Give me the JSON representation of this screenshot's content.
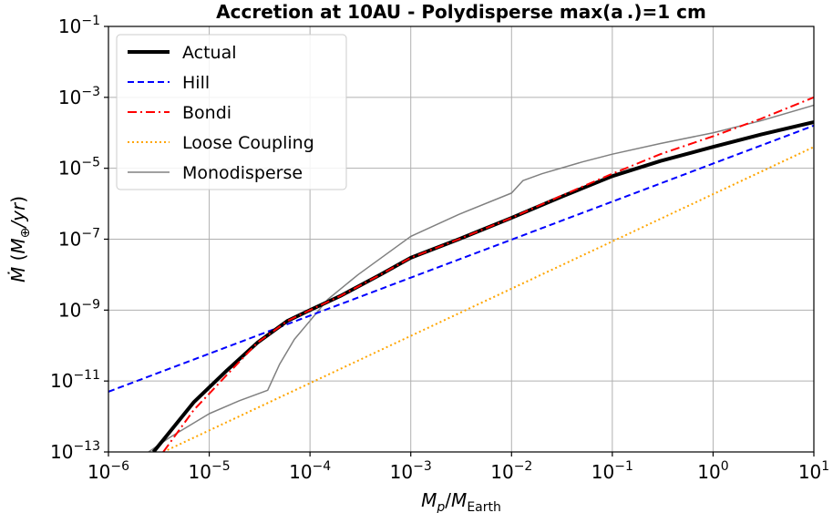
{
  "chart_data": {
    "type": "line",
    "title": "Accretion at 10AU - Polydisperse max(a .)=1 cm",
    "xlabel": "M_p/M_Earth",
    "ylabel": "Ṁ (M⊕/yr)",
    "xscale": "log",
    "yscale": "log",
    "xlim": [
      1e-06,
      10
    ],
    "ylim": [
      1e-13,
      0.1
    ],
    "grid": true,
    "legend_position": "top-left",
    "x_ticks": [
      1e-06,
      1e-05,
      0.0001,
      0.001,
      0.01,
      0.1,
      1,
      10
    ],
    "x_tick_labels": [
      "10^-6",
      "10^-5",
      "10^-4",
      "10^-3",
      "10^-2",
      "10^-1",
      "10^0",
      "10^1"
    ],
    "y_ticks": [
      1e-13,
      1e-11,
      1e-09,
      1e-07,
      1e-05,
      0.001,
      0.1
    ],
    "y_tick_labels": [
      "10^-13",
      "10^-11",
      "10^-9",
      "10^-7",
      "10^-5",
      "10^-3",
      "10^-1"
    ],
    "series": [
      {
        "name": "Actual",
        "color": "#000000",
        "style": "solid",
        "x": [
          2.8e-06,
          4e-06,
          7e-06,
          1.5e-05,
          3e-05,
          6e-05,
          0.0001,
          0.0002,
          0.0005,
          0.001,
          0.003,
          0.01,
          0.03,
          0.1,
          0.3,
          1,
          3,
          10
        ],
        "y": [
          1e-13,
          3.5e-13,
          2.5e-12,
          2e-11,
          1.2e-10,
          5e-10,
          1e-09,
          2.5e-09,
          1e-08,
          3e-08,
          1e-07,
          4e-07,
          1.5e-06,
          6e-06,
          1.6e-05,
          4e-05,
          9e-05,
          0.0002
        ]
      },
      {
        "name": "Hill",
        "color": "#0000ff",
        "style": "dashed",
        "x": [
          1e-06,
          10
        ],
        "y": [
          5e-12,
          0.00016
        ]
      },
      {
        "name": "Bondi",
        "color": "#ff0000",
        "style": "dashdot",
        "x": [
          3.5e-06,
          7e-06,
          1.5e-05,
          3e-05,
          6e-05,
          0.0001,
          0.0002,
          0.0005,
          0.001,
          0.003,
          0.01,
          0.03,
          0.1,
          0.3,
          1,
          3,
          10
        ],
        "y": [
          1e-13,
          1.5e-12,
          1.5e-11,
          1.2e-10,
          5e-10,
          1e-09,
          2.5e-09,
          1e-08,
          3e-08,
          1e-07,
          4e-07,
          1.6e-06,
          7e-06,
          2.5e-05,
          8e-05,
          0.00025,
          0.001
        ]
      },
      {
        "name": "Loose Coupling",
        "color": "#ffa500",
        "style": "dotted",
        "x": [
          3.5e-06,
          10
        ],
        "y": [
          1e-13,
          4e-05
        ]
      },
      {
        "name": "Monodisperse",
        "color": "#808080",
        "style": "solid",
        "x": [
          2.5e-06,
          4e-06,
          1e-05,
          2e-05,
          3.8e-05,
          5e-05,
          7e-05,
          0.0001,
          0.00015,
          0.0003,
          0.001,
          0.003,
          0.01,
          0.013,
          0.02,
          0.05,
          0.1,
          0.3,
          1,
          3,
          10
        ],
        "y": [
          1e-13,
          2.5e-13,
          1.2e-12,
          2.8e-12,
          5.5e-12,
          3e-11,
          1.5e-10,
          5e-10,
          2e-09,
          1e-08,
          1.2e-07,
          5e-07,
          2e-06,
          4.5e-06,
          7e-06,
          1.5e-05,
          2.5e-05,
          5e-05,
          0.0001,
          0.00022,
          0.0006
        ]
      }
    ]
  }
}
